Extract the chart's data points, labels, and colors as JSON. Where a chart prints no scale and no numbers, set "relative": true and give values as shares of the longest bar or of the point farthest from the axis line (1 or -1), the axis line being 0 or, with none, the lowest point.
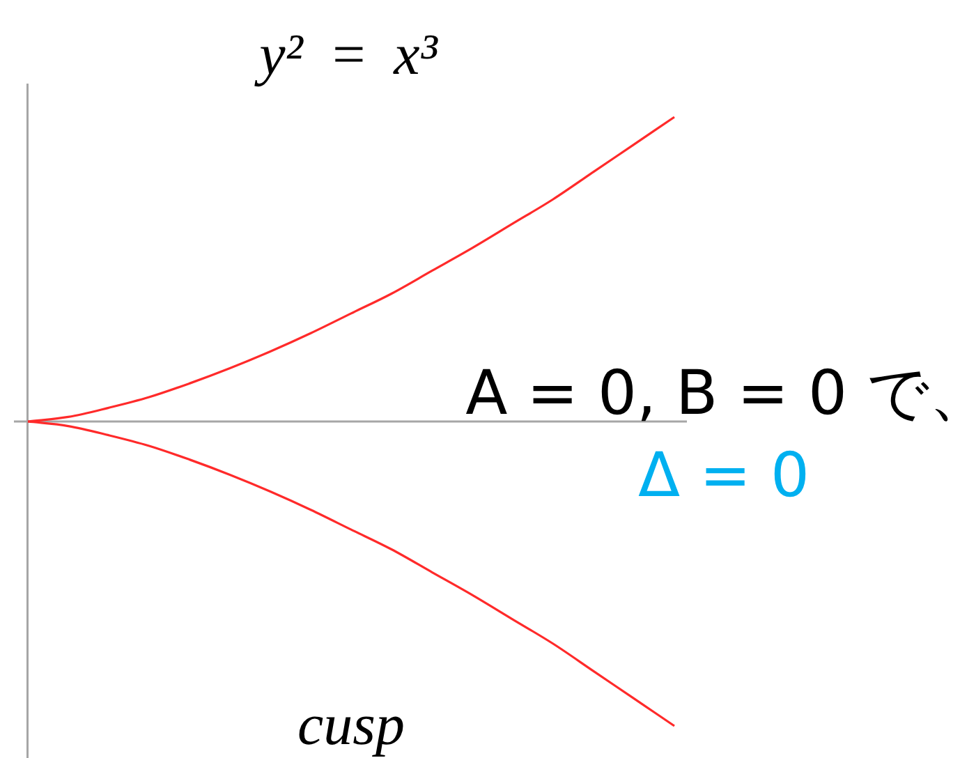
{
  "chart_data": {
    "type": "line",
    "title": "y² = x³",
    "xlabel": "cusp",
    "relative": true,
    "categories": [
      null,
      null,
      null,
      null,
      null,
      null,
      null,
      null,
      null,
      null,
      null,
      null,
      null,
      null,
      null,
      null,
      null
    ],
    "series": [
      {
        "color": "#ff2a2a",
        "values": [
          0,
          0.015,
          0.045,
          0.08,
          0.125,
          0.175,
          0.23,
          0.29,
          0.355,
          0.42,
          0.495,
          0.57,
          0.65,
          0.73,
          0.82,
          0.91,
          1
        ]
      },
      {
        "color": "#ff2a2a",
        "values": [
          0,
          -0.015,
          -0.045,
          -0.08,
          -0.125,
          -0.175,
          -0.23,
          -0.29,
          -0.355,
          -0.42,
          -0.495,
          -0.57,
          -0.65,
          -0.73,
          -0.82,
          -0.91,
          -1
        ]
      }
    ],
    "annotations": [
      "A = 0, B = 0 で、",
      "Δ = 0"
    ],
    "legend": false,
    "grid": false
  }
}
